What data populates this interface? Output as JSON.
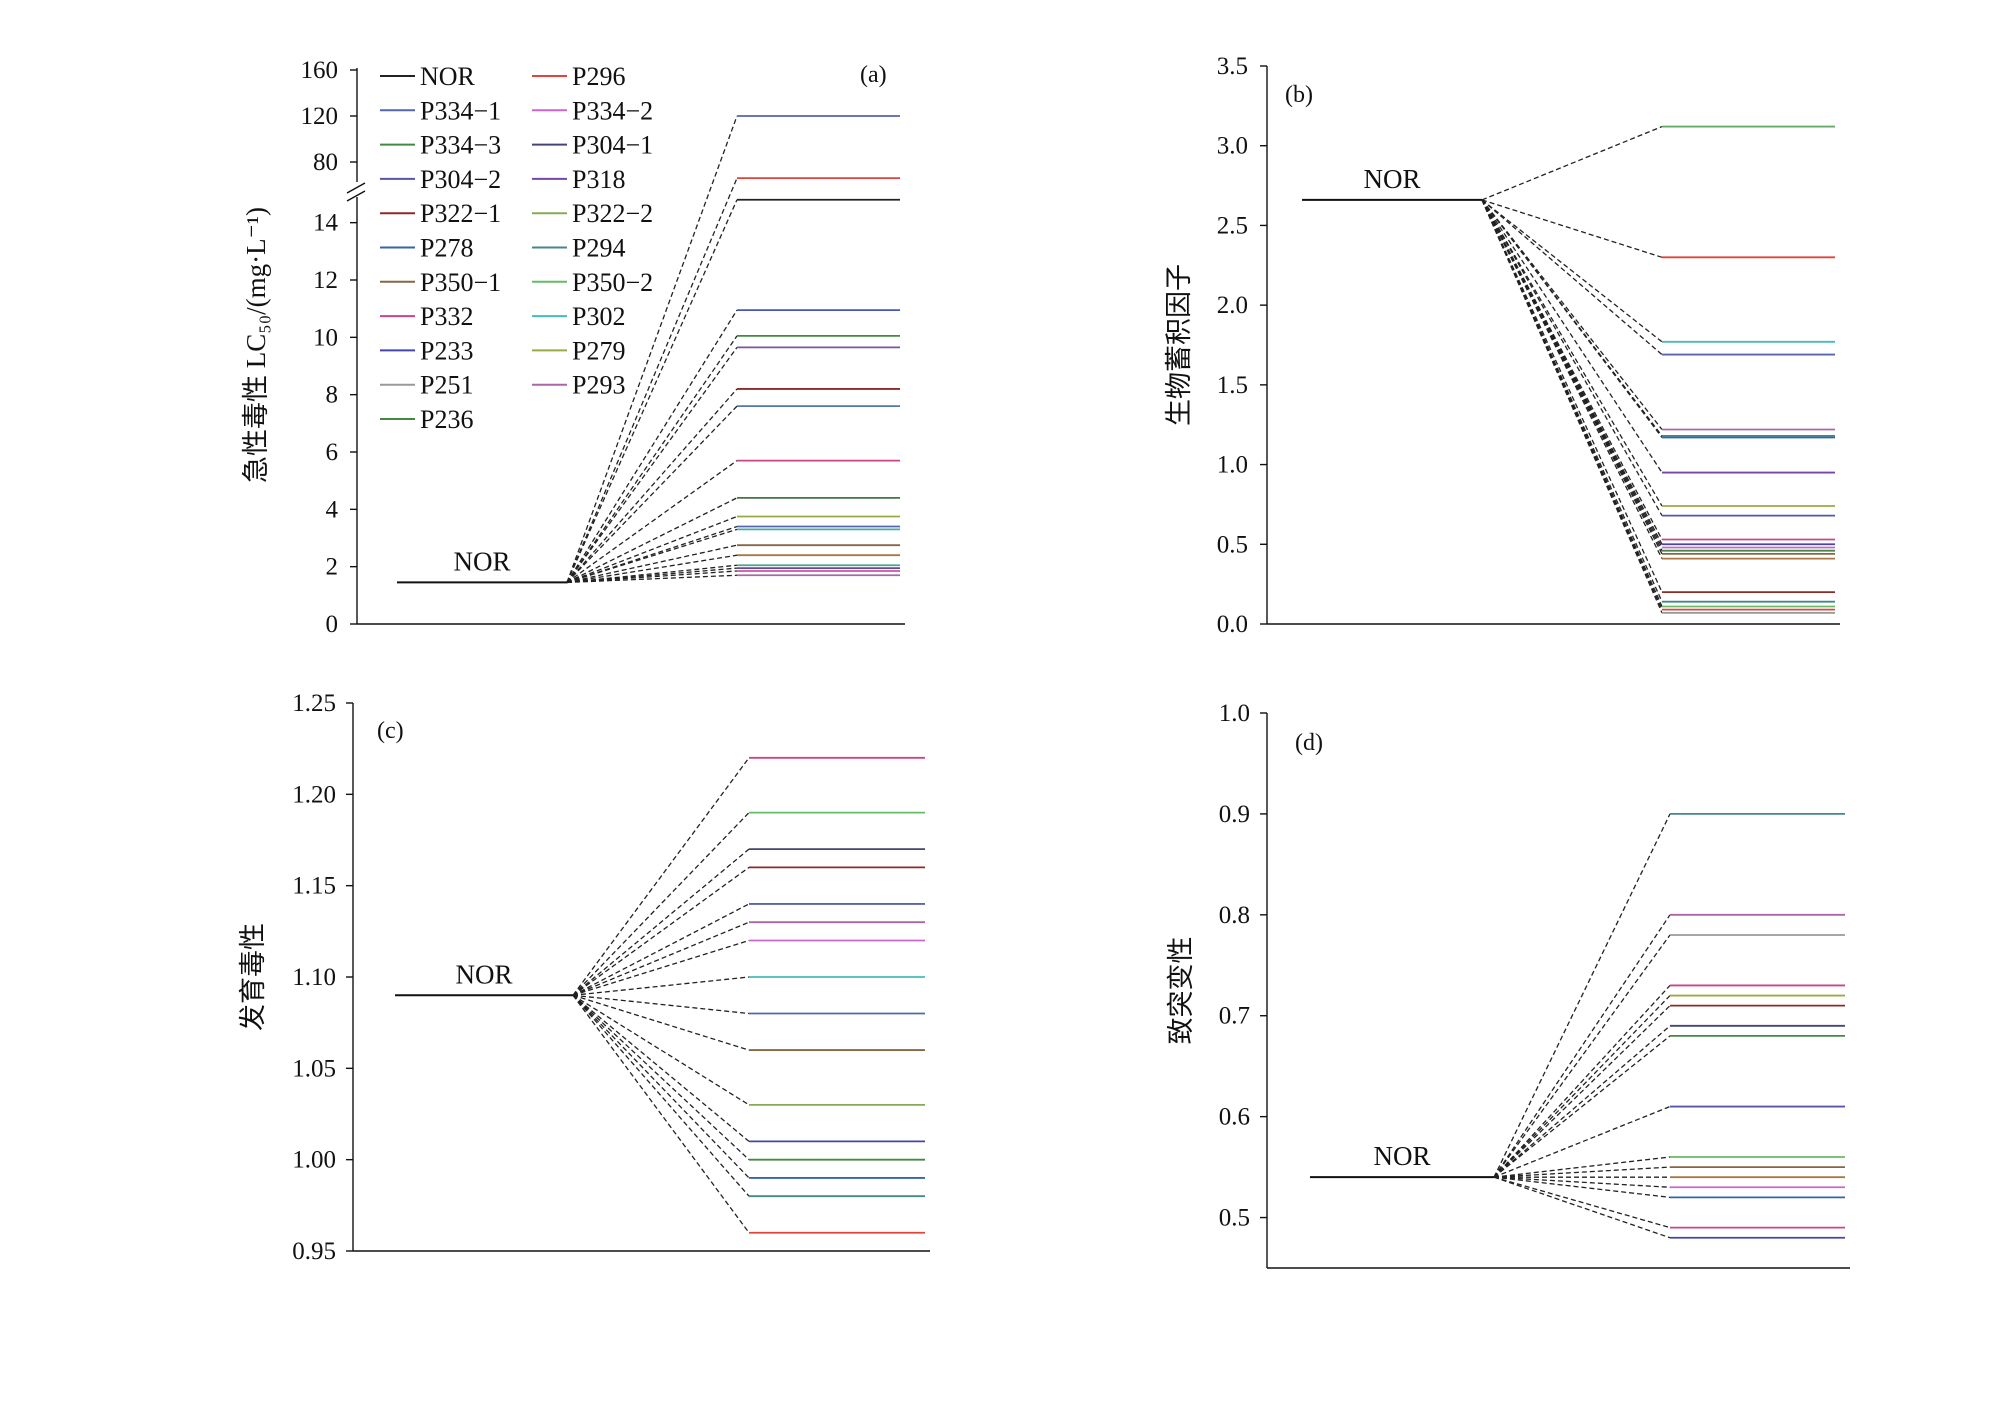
{
  "chart_data": [
    {
      "id": "a",
      "type": "line",
      "panel_label": "(a)",
      "ylabel": "急性毒性 LC₅₀/(mg·L⁻¹)",
      "broken_axis": true,
      "ylim_lower": [
        0,
        15
      ],
      "ylim_upper": [
        60,
        160
      ],
      "yticks": [
        0,
        2,
        4,
        6,
        8,
        10,
        12,
        14,
        80,
        120,
        160
      ],
      "nor_label": "NOR",
      "nor_value": 1.45,
      "values": [
        120,
        66,
        14.8,
        10.95,
        10.05,
        9.65,
        8.2,
        7.6,
        5.7,
        4.4,
        3.75,
        3.4,
        3.3,
        2.75,
        2.4,
        2.05,
        1.95,
        1.85,
        1.7
      ],
      "value_colors": [
        "#5566aa",
        "#e0443a",
        "#222222",
        "#4455bb",
        "#448844",
        "#7755aa",
        "#8b2a2a",
        "#5577aa",
        "#cc4488",
        "#447744",
        "#99aa44",
        "#5566aa",
        "#44aaaa",
        "#886644",
        "#aa7744",
        "#44aa88",
        "#6644aa",
        "#cc5599",
        "#aa66aa"
      ],
      "legend": [
        "NOR",
        "P296",
        "P334−1",
        "P334−2",
        "P334−3",
        "P304−1",
        "P304−2",
        "P318",
        "P322−1",
        "P322−2",
        "P278",
        "P294",
        "P350−1",
        "P350−2",
        "P332",
        "P302",
        "P233",
        "P279",
        "P251",
        "P293",
        "P236"
      ],
      "legend_colors": [
        "#222222",
        "#e0443a",
        "#5566aa",
        "#cc66cc",
        "#448844",
        "#444477",
        "#5555aa",
        "#7744aa",
        "#8b2a2a",
        "#88aa55",
        "#3366aa",
        "#448888",
        "#886644",
        "#66bb66",
        "#cc4488",
        "#44bbbb",
        "#4444aa",
        "#99aa44",
        "#999999",
        "#aa66aa",
        "#448844"
      ]
    },
    {
      "id": "b",
      "type": "line",
      "panel_label": "(b)",
      "ylabel": "生物蓄积因子",
      "ylim": [
        0,
        3.5
      ],
      "yticks": [
        "0.0",
        "0.5",
        "1.0",
        "1.5",
        "2.0",
        "2.5",
        "3.0",
        "3.5"
      ],
      "nor_label": "NOR",
      "nor_value": 2.66,
      "values": [
        3.12,
        2.3,
        1.77,
        1.69,
        1.22,
        1.18,
        1.17,
        0.95,
        0.74,
        0.68,
        0.53,
        0.5,
        0.48,
        0.46,
        0.44,
        0.41,
        0.2,
        0.14,
        0.11,
        0.09,
        0.07
      ],
      "value_colors": [
        "#66aa66",
        "#e0443a",
        "#44bbbb",
        "#5566aa",
        "#aa66aa",
        "#448888",
        "#3366aa",
        "#7744aa",
        "#99aa44",
        "#5555aa",
        "#cc4488",
        "#4444aa",
        "#cc66cc",
        "#448844",
        "#886644",
        "#aa7744",
        "#8b2a2a",
        "#448888",
        "#66bb66",
        "#e0443a",
        "#999999"
      ]
    },
    {
      "id": "c",
      "type": "line",
      "panel_label": "(c)",
      "ylabel": "发育毒性",
      "ylim": [
        0.95,
        1.25
      ],
      "yticks": [
        "0.95",
        "1.00",
        "1.05",
        "1.10",
        "1.15",
        "1.20",
        "1.25"
      ],
      "nor_label": "NOR",
      "nor_value": 1.09,
      "values": [
        1.22,
        1.19,
        1.17,
        1.16,
        1.14,
        1.13,
        1.12,
        1.1,
        1.08,
        1.06,
        1.03,
        1.01,
        1.0,
        0.99,
        0.98,
        0.96
      ],
      "value_colors": [
        "#cc4488",
        "#66bb66",
        "#444477",
        "#8b2a2a",
        "#5566aa",
        "#aa66aa",
        "#cc66cc",
        "#44bbbb",
        "#5566aa",
        "#886644",
        "#88aa55",
        "#4444aa",
        "#448844",
        "#3366aa",
        "#448888",
        "#e0443a"
      ]
    },
    {
      "id": "d",
      "type": "line",
      "panel_label": "(d)",
      "ylabel": "致突变性",
      "ylim": [
        0.45,
        1.0
      ],
      "yticks": [
        "0.5",
        "0.6",
        "0.7",
        "0.8",
        "0.9",
        "1.0"
      ],
      "nor_label": "NOR",
      "nor_value": 0.54,
      "values": [
        0.9,
        0.8,
        0.78,
        0.73,
        0.72,
        0.71,
        0.69,
        0.68,
        0.61,
        0.56,
        0.55,
        0.54,
        0.53,
        0.52,
        0.49,
        0.48
      ],
      "value_colors": [
        "#448888",
        "#aa66aa",
        "#999999",
        "#cc4488",
        "#99aa44",
        "#8b2a2a",
        "#444477",
        "#448844",
        "#5555aa",
        "#66bb66",
        "#886644",
        "#aa7744",
        "#cc66cc",
        "#3366aa",
        "#cc4488",
        "#4444aa"
      ]
    }
  ]
}
